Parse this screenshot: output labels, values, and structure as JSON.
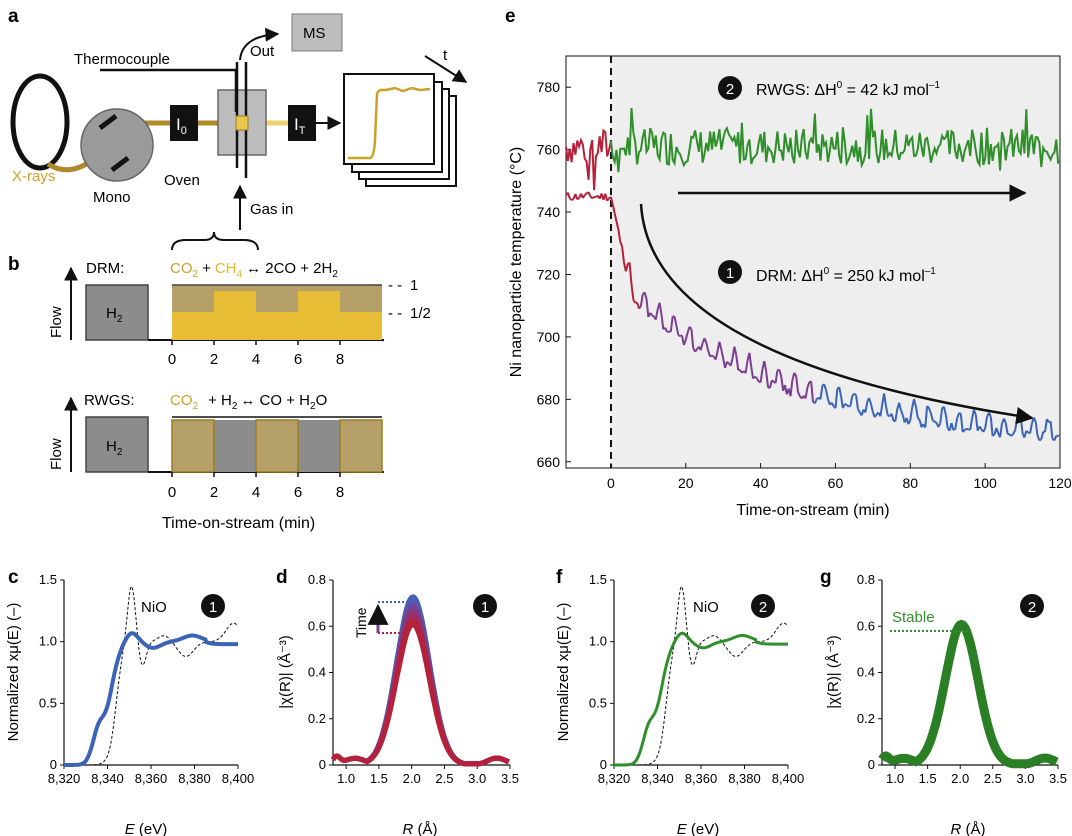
{
  "panel_labels": {
    "a": "a",
    "b": "b",
    "c": "c",
    "d": "d",
    "e": "e",
    "f": "f",
    "g": "g"
  },
  "colors": {
    "gold": "#c9a227",
    "gold_fill": "#e8bd36",
    "gold_dark": "#9c7d22",
    "gray_fill": "#8c8c8c",
    "red": "#b5213a",
    "purple": "#7a3f8f",
    "blue": "#3b64b8",
    "green": "#2f8f2a",
    "green_dark": "#2a7f24",
    "shade": "#eeeeee",
    "bg_line": "#111111"
  },
  "schematic": {
    "thermocouple": "Thermocouple",
    "out": "Out",
    "ms": "MS",
    "xrays": "X-rays",
    "mono": "Mono",
    "oven": "Oven",
    "gas_in": "Gas in",
    "i0_main": "I",
    "i0_sub": "0",
    "it_main": "I",
    "it_sub": "T",
    "time": "t"
  },
  "panel_b": {
    "flow_label": "Flow",
    "h2": "H",
    "h2_sub": "2",
    "drm": {
      "label": "DRM:",
      "eq_co2": "CO",
      "eq_co2_sub": "2",
      "eq_plus1": "+",
      "eq_ch4": "CH",
      "eq_ch4_sub": "4",
      "eq_rest": "↔ 2CO + 2H",
      "eq_rest_sub": "2",
      "level_1": "1",
      "level_half": "1/2",
      "dash": "- -",
      "switch_times": [
        0,
        2,
        4,
        6,
        8,
        10
      ],
      "ch4_levels": [
        0.5,
        1,
        0.5,
        1,
        0.5
      ]
    },
    "rwgs": {
      "label": "RWGS:",
      "eq_co2": "CO",
      "eq_co2_sub": "2",
      "eq_rest": "+ H",
      "eq_rest_sub": "2",
      "eq_rest2": "↔ CO + H",
      "eq_rest2_sub": "2",
      "eq_rest3": "O",
      "on_intervals": [
        [
          0,
          2
        ],
        [
          4,
          6
        ],
        [
          8,
          10
        ]
      ]
    },
    "ticks": [
      "0",
      "2",
      "4",
      "6",
      "8"
    ],
    "xlabel": "Time-on-stream (min)"
  },
  "chart_data": [
    {
      "id": "e",
      "type": "line",
      "xlabel": "Time-on-stream (min)",
      "ylabel": "Ni nanoparticle temperature (°C)",
      "xlim": [
        -12,
        120
      ],
      "ylim": [
        658,
        790
      ],
      "xticks": [
        "0",
        "20",
        "40",
        "60",
        "80",
        "100",
        "120"
      ],
      "yticks": [
        "660",
        "680",
        "700",
        "720",
        "740",
        "760",
        "780"
      ],
      "series": [
        {
          "name": "RWGS",
          "mean": 761,
          "amplitude": 6,
          "x_start": -12,
          "x_end": 120
        },
        {
          "name": "DRM",
          "start": 745,
          "pre_switch": 745,
          "drop_to": 711,
          "end": 664,
          "oscillation_period_min": 4,
          "oscillation_amplitude": 6,
          "x_start": -12,
          "x_end": 120
        }
      ],
      "annotations": {
        "rwgs_num": "2",
        "rwgs_text": "RWGS: ΔH",
        "rwgs_sup": "0",
        "rwgs_val": " = 42 kJ mol",
        "rwgs_unit_sup": "–1",
        "drm_num": "1",
        "drm_text": "DRM: ΔH",
        "drm_sup": "0",
        "drm_val": " = 250 kJ mol",
        "drm_unit_sup": "–1"
      }
    },
    {
      "id": "c",
      "type": "line",
      "xlabel": "E (eV)",
      "ylabel": "Normalized xμ(E) (–)",
      "xlim": [
        8320,
        8400
      ],
      "ylim": [
        0,
        1.5
      ],
      "xticks": [
        "8,320",
        "8,340",
        "8,360",
        "8,380",
        "8,400"
      ],
      "yticks": [
        "0",
        "0.5",
        "1.0",
        "1.5"
      ],
      "reference_label": "NiO",
      "marker": "1",
      "series": [
        {
          "name": "sample",
          "edge_eV": 8341,
          "white_line": 1.07
        },
        {
          "name": "NiO",
          "edge_eV": 8344,
          "peak": 1.45
        }
      ]
    },
    {
      "id": "d",
      "type": "line",
      "xlabel": "R (Å)",
      "ylabel": "|χ(R)| (Å⁻³)",
      "xlim": [
        0.8,
        3.5
      ],
      "ylim": [
        0,
        0.8
      ],
      "xticks": [
        "1.0",
        "1.5",
        "2.0",
        "2.5",
        "3.0",
        "3.5"
      ],
      "yticks": [
        "0",
        "0.2",
        "0.4",
        "0.6",
        "0.8"
      ],
      "marker": "1",
      "arrow_label": "Time",
      "series": [
        {
          "name": "early",
          "peak": 0.6
        },
        {
          "name": "late",
          "peak": 0.72
        }
      ]
    },
    {
      "id": "f",
      "type": "line",
      "xlabel": "E (eV)",
      "ylabel": "Normalized xμ(E) (–)",
      "xlim": [
        8320,
        8400
      ],
      "ylim": [
        0,
        1.5
      ],
      "xticks": [
        "8,320",
        "8,340",
        "8,360",
        "8,380",
        "8,400"
      ],
      "yticks": [
        "0",
        "0.5",
        "1.0",
        "1.5"
      ],
      "reference_label": "NiO",
      "marker": "2",
      "series": [
        {
          "name": "sample",
          "edge_eV": 8341,
          "white_line": 1.07
        },
        {
          "name": "NiO",
          "edge_eV": 8344,
          "peak": 1.45
        }
      ]
    },
    {
      "id": "g",
      "type": "line",
      "xlabel": "R (Å)",
      "ylabel": "|χ(R)| (Å⁻³)",
      "xlim": [
        0.8,
        3.5
      ],
      "ylim": [
        0,
        0.8
      ],
      "xticks": [
        "1.0",
        "1.5",
        "2.0",
        "2.5",
        "3.0",
        "3.5"
      ],
      "yticks": [
        "0",
        "0.2",
        "0.4",
        "0.6",
        "0.8"
      ],
      "marker": "2",
      "stable_label": "Stable",
      "series": [
        {
          "name": "all",
          "peak": 0.6
        }
      ]
    }
  ]
}
